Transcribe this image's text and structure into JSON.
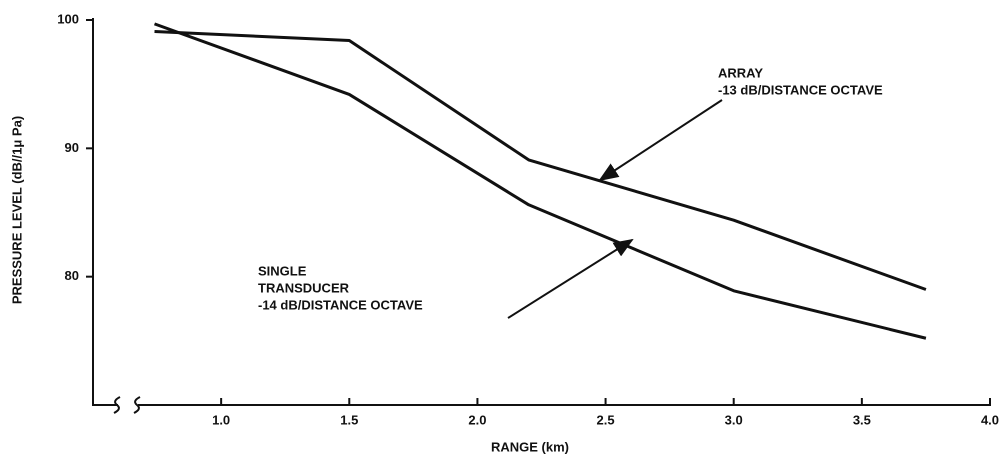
{
  "chart_data": {
    "type": "line",
    "xlabel": "RANGE (km)",
    "ylabel": "PRESSURE LEVEL (dB//1μ Pa)",
    "xlim": [
      0.5,
      4.0
    ],
    "ylim": [
      70,
      100
    ],
    "xticks": [
      {
        "value": 1.0,
        "label": "1.0"
      },
      {
        "value": 1.5,
        "label": "1.5"
      },
      {
        "value": 2.0,
        "label": "2.0"
      },
      {
        "value": 2.5,
        "label": "2.5"
      },
      {
        "value": 3.0,
        "label": "3.0"
      },
      {
        "value": 3.5,
        "label": "3.5"
      },
      {
        "value": 4.0,
        "label": "4.0"
      }
    ],
    "yticks": [
      80,
      90,
      100
    ],
    "series": [
      {
        "color": "#111111",
        "x": [
          0.74,
          1.5,
          2.2,
          3.0,
          3.75
        ],
        "values": [
          99.1,
          98.4,
          89.1,
          84.4,
          79.0
        ]
      },
      {
        "color": "#111111",
        "x": [
          0.74,
          1.5,
          2.2,
          3.0,
          3.75
        ],
        "values": [
          99.7,
          94.2,
          85.6,
          78.9,
          75.2
        ]
      }
    ],
    "annotations": [
      {
        "lines": [
          "ARRAY",
          "-13 dB/DISTANCE OCTAVE"
        ]
      },
      {
        "lines": [
          "SINGLE",
          "TRANSDUCER",
          "-14 dB/DISTANCE OCTAVE"
        ]
      }
    ]
  }
}
